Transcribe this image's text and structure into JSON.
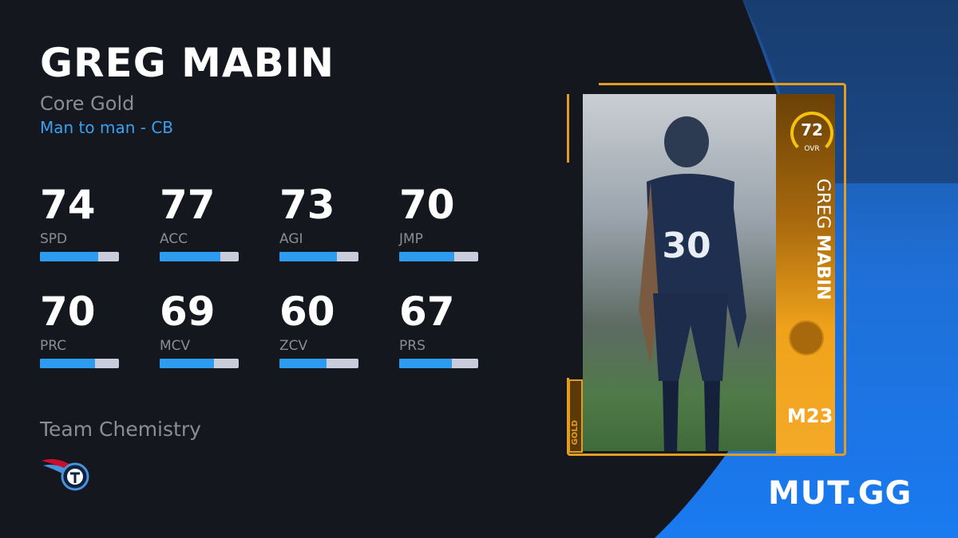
{
  "player": {
    "name": "GREG MABIN",
    "program": "Core Gold",
    "scheme": "Man to man - CB"
  },
  "stats": [
    {
      "label": "SPD",
      "value": 74
    },
    {
      "label": "ACC",
      "value": 77
    },
    {
      "label": "AGI",
      "value": 73
    },
    {
      "label": "JMP",
      "value": 70
    },
    {
      "label": "PRC",
      "value": 70
    },
    {
      "label": "MCV",
      "value": 69
    },
    {
      "label": "ZCV",
      "value": 60
    },
    {
      "label": "PRS",
      "value": 67
    }
  ],
  "team_chemistry": {
    "label": "Team Chemistry",
    "team_icon": "titans-logo-icon"
  },
  "card": {
    "ovr": "72",
    "ovr_label": "OVR",
    "first_name": "GREG",
    "last_name": "MABIN",
    "edition": "M23",
    "tier": "GOLD",
    "jersey": "30"
  },
  "brand": "MUT.GG",
  "colors": {
    "background": "#15171f",
    "accent": "#2d9bf0",
    "bar_track": "#c9ccdb",
    "gold": "#f0a21b"
  }
}
